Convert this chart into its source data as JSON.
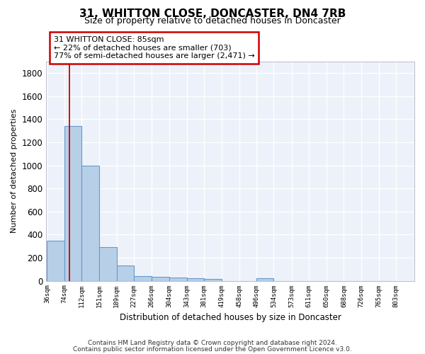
{
  "title": "31, WHITTON CLOSE, DONCASTER, DN4 7RB",
  "subtitle": "Size of property relative to detached houses in Doncaster",
  "xlabel": "Distribution of detached houses by size in Doncaster",
  "ylabel": "Number of detached properties",
  "footnote1": "Contains HM Land Registry data © Crown copyright and database right 2024.",
  "footnote2": "Contains public sector information licensed under the Open Government Licence v3.0.",
  "bins": [
    36,
    74,
    112,
    151,
    189,
    227,
    266,
    304,
    343,
    381,
    419,
    458,
    496,
    534,
    573,
    611,
    650,
    688,
    726,
    765,
    803
  ],
  "values": [
    350,
    1340,
    1000,
    290,
    130,
    40,
    35,
    30,
    20,
    15,
    0,
    0,
    20,
    0,
    0,
    0,
    0,
    0,
    0,
    0
  ],
  "bar_color": "#b8cfe8",
  "bar_edgecolor": "#6699cc",
  "bg_color": "#edf2fa",
  "grid_color": "#ffffff",
  "red_line_x": 85,
  "annotation_line1": "31 WHITTON CLOSE: 85sqm",
  "annotation_line2": "← 22% of detached houses are smaller (703)",
  "annotation_line3": "77% of semi-detached houses are larger (2,471) →",
  "ylim": [
    0,
    1900
  ],
  "yticks": [
    0,
    200,
    400,
    600,
    800,
    1000,
    1200,
    1400,
    1600,
    1800
  ]
}
